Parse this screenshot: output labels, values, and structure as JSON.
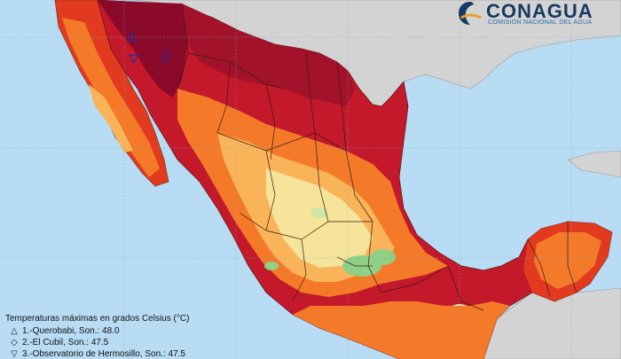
{
  "logo": {
    "name": "CONAGUA",
    "subtitle": "COMISIÓN NACIONAL DEL AGUA"
  },
  "legend": {
    "title": "Temperaturas máximas en grados Celsius (°C)",
    "items": [
      {
        "symbol": "△",
        "text": "1.-Querobabi, Son.: 48.0"
      },
      {
        "symbol": "◇",
        "text": "2.-El Cubil, Son.: 47.5"
      },
      {
        "symbol": "▽",
        "text": "3.-Observatorio de Hermosillo, Son.: 47.5"
      }
    ]
  },
  "colors": {
    "ocean": "#b7dcf3",
    "land_other": "#d4d4d4",
    "hottest": "#8b0a2a",
    "very_hot": "#c4192b",
    "hot": "#e23a1f",
    "warm": "#f47a2a",
    "mild": "#f9b45a",
    "cool": "#f6e49a",
    "coolest": "#8fcf86"
  }
}
